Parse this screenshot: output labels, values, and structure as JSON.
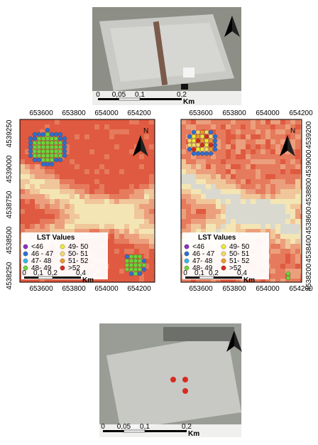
{
  "top_photo": {
    "scale_labels": [
      "0",
      "0,05",
      "0,1",
      "0,2"
    ],
    "scale_unit": "Km"
  },
  "maps": [
    {
      "x_ticks": [
        653600,
        653800,
        654000,
        654200
      ],
      "y_ticks": [
        4539250,
        4539000,
        4538750,
        4538500,
        4538250
      ],
      "north": "N",
      "legend": {
        "title": "LST Values",
        "items": [
          "<46",
          "46 - 47",
          "47- 48",
          "48- 49",
          "49- 50",
          "50- 51",
          "51- 52",
          ">52"
        ]
      },
      "scale_labels": [
        "0",
        "0,1",
        "0,2",
        "0,4"
      ],
      "scale_unit": "Km"
    },
    {
      "x_ticks": [
        653600,
        653800,
        654000,
        654200
      ],
      "y_ticks": [
        4539200,
        4539000,
        4538800,
        4538600,
        4538400,
        4538200
      ],
      "north": "N",
      "legend": {
        "title": "LST Values",
        "items": [
          "<46",
          "46 - 47",
          "47- 48",
          "48- 49",
          "49- 50",
          "50- 51",
          "51- 52",
          ">52"
        ]
      },
      "scale_labels": [
        "0",
        "0,1",
        "0,2",
        "0,4"
      ],
      "scale_unit": "Km"
    }
  ],
  "bottom_photo": {
    "scale_labels": [
      "0",
      "0,05",
      "0,1",
      "0,2"
    ],
    "scale_unit": "Km"
  }
}
